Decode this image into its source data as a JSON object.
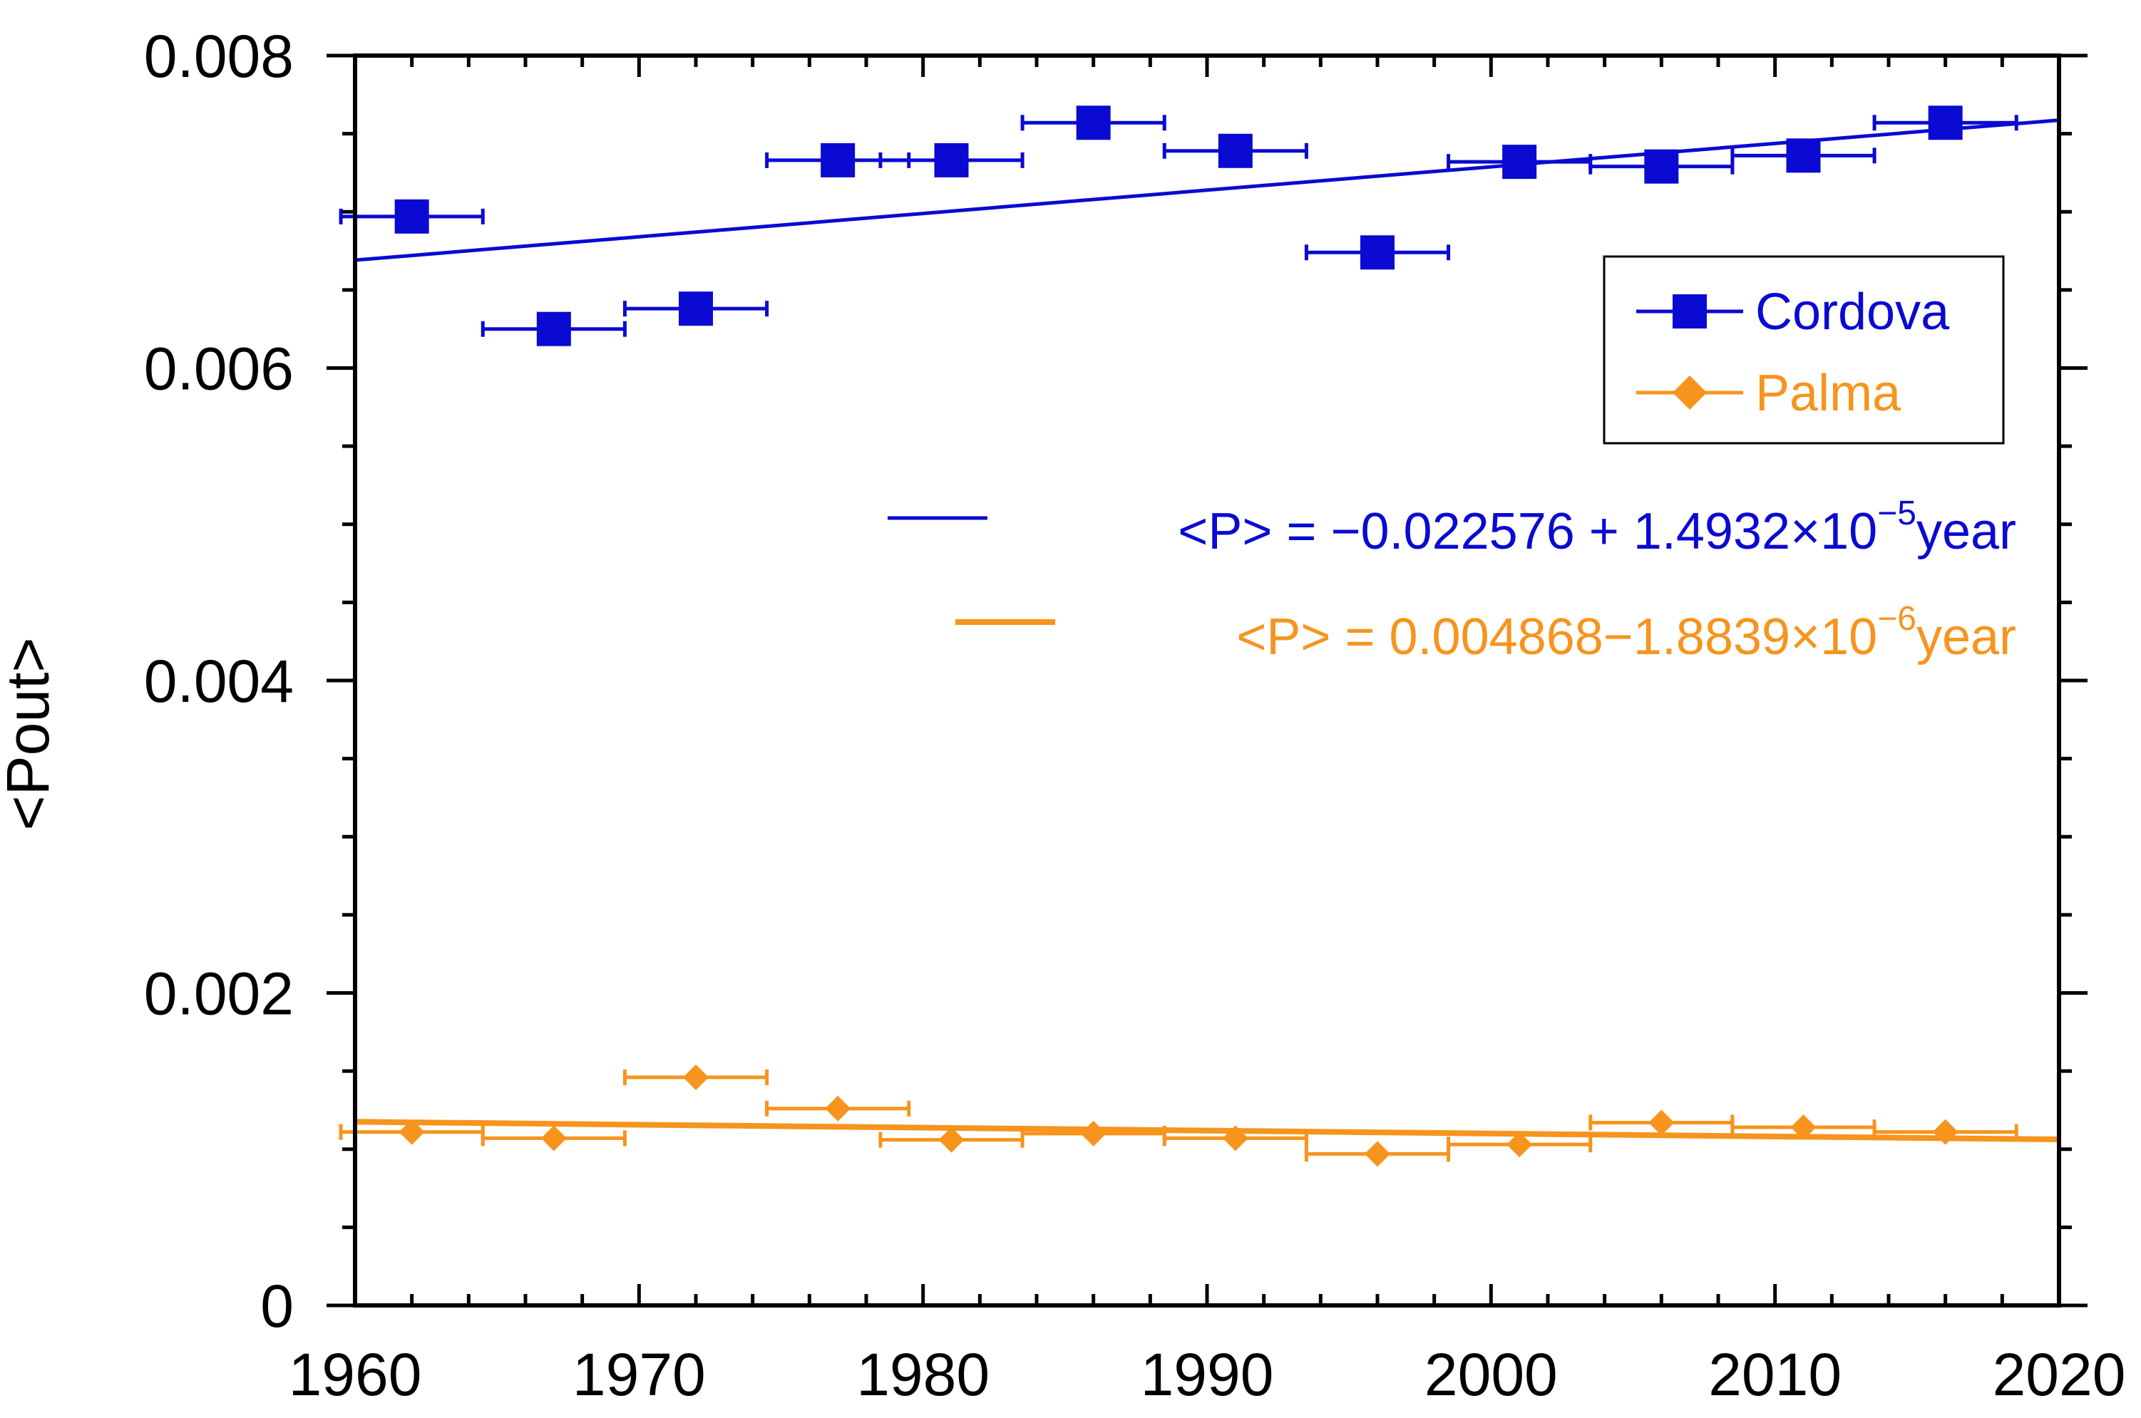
{
  "chart_data": {
    "type": "scatter",
    "title": "",
    "xlabel": "",
    "ylabel": "<Pout>",
    "xlim": [
      1960,
      2020
    ],
    "ylim": [
      0,
      0.008
    ],
    "x_ticks": [
      1960,
      1970,
      1980,
      1990,
      2000,
      2010,
      2020
    ],
    "y_ticks": [
      0,
      0.002,
      0.004,
      0.006,
      0.008
    ],
    "x_tick_labels": [
      "1960",
      "1970",
      "1980",
      "1990",
      "2000",
      "2010",
      "2020"
    ],
    "y_tick_labels": [
      "0",
      "0.002",
      "0.004",
      "0.006",
      "0.008"
    ],
    "x_minor_step": 2,
    "y_minor_step": 0.0005,
    "grid": false,
    "legend_position": "top-right",
    "series": [
      {
        "name": "Cordova",
        "color": "#0a0ad2",
        "marker": "square",
        "x": [
          1962,
          1967,
          1972,
          1977,
          1981,
          1986,
          1991,
          1996,
          2001,
          2006,
          2011,
          2016
        ],
        "y": [
          0.00697,
          0.00625,
          0.00638,
          0.00733,
          0.00733,
          0.00757,
          0.00739,
          0.00674,
          0.00732,
          0.00729,
          0.00736,
          0.00757
        ],
        "xerr": 2.5,
        "fit": {
          "intercept": -0.022576,
          "slope": 1.4932e-05,
          "label_main": "<P> = −0.022576 + 1.4932×10",
          "label_exp": "−5",
          "label_tail": "year"
        }
      },
      {
        "name": "Palma",
        "color": "#f7941d",
        "marker": "diamond",
        "x": [
          1962,
          1967,
          1972,
          1977,
          1981,
          1986,
          1991,
          1996,
          2001,
          2006,
          2011,
          2016
        ],
        "y": [
          0.00111,
          0.00107,
          0.00146,
          0.00126,
          0.00106,
          0.0011,
          0.00107,
          0.00097,
          0.00103,
          0.00117,
          0.00114,
          0.00111
        ],
        "xerr": 2.5,
        "fit": {
          "intercept": 0.004868,
          "slope": -1.8839e-06,
          "label_main": "<P> = 0.004868−1.8839×10",
          "label_exp": "−6",
          "label_tail": "year"
        }
      }
    ]
  }
}
